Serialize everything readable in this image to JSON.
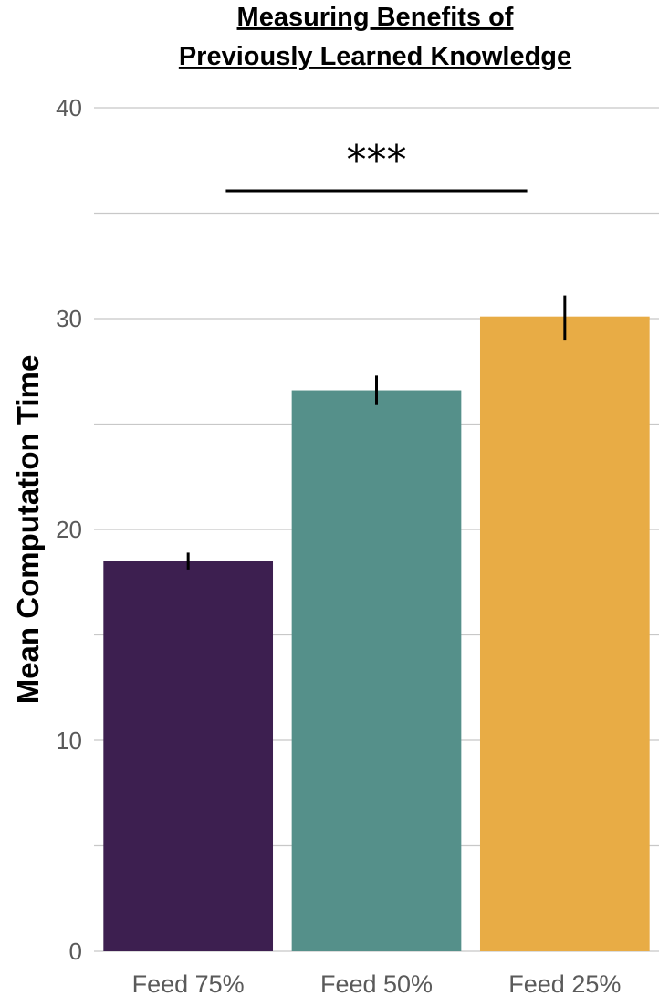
{
  "chart_data": {
    "type": "bar",
    "title_lines": [
      "Measuring Benefits of",
      "Previously Learned Knowledge"
    ],
    "xlabel": "",
    "ylabel": "Mean Computation Time",
    "categories": [
      "Feed 75%",
      "Feed 50%",
      "Feed 25%"
    ],
    "values": [
      18.5,
      26.6,
      30.1
    ],
    "error": [
      [
        18.1,
        18.9
      ],
      [
        25.9,
        27.3
      ],
      [
        29.0,
        31.1
      ]
    ],
    "colors": [
      "#3d1f50",
      "#55908a",
      "#e8ac45"
    ],
    "ylim": [
      0,
      40
    ],
    "yticks": [
      0,
      10,
      20,
      30,
      40
    ],
    "minor_gridlines": [
      5,
      15,
      25,
      35
    ],
    "grid": true,
    "legend": "none",
    "significance": {
      "label": "***",
      "from_category": 0,
      "to_category": 2
    }
  }
}
